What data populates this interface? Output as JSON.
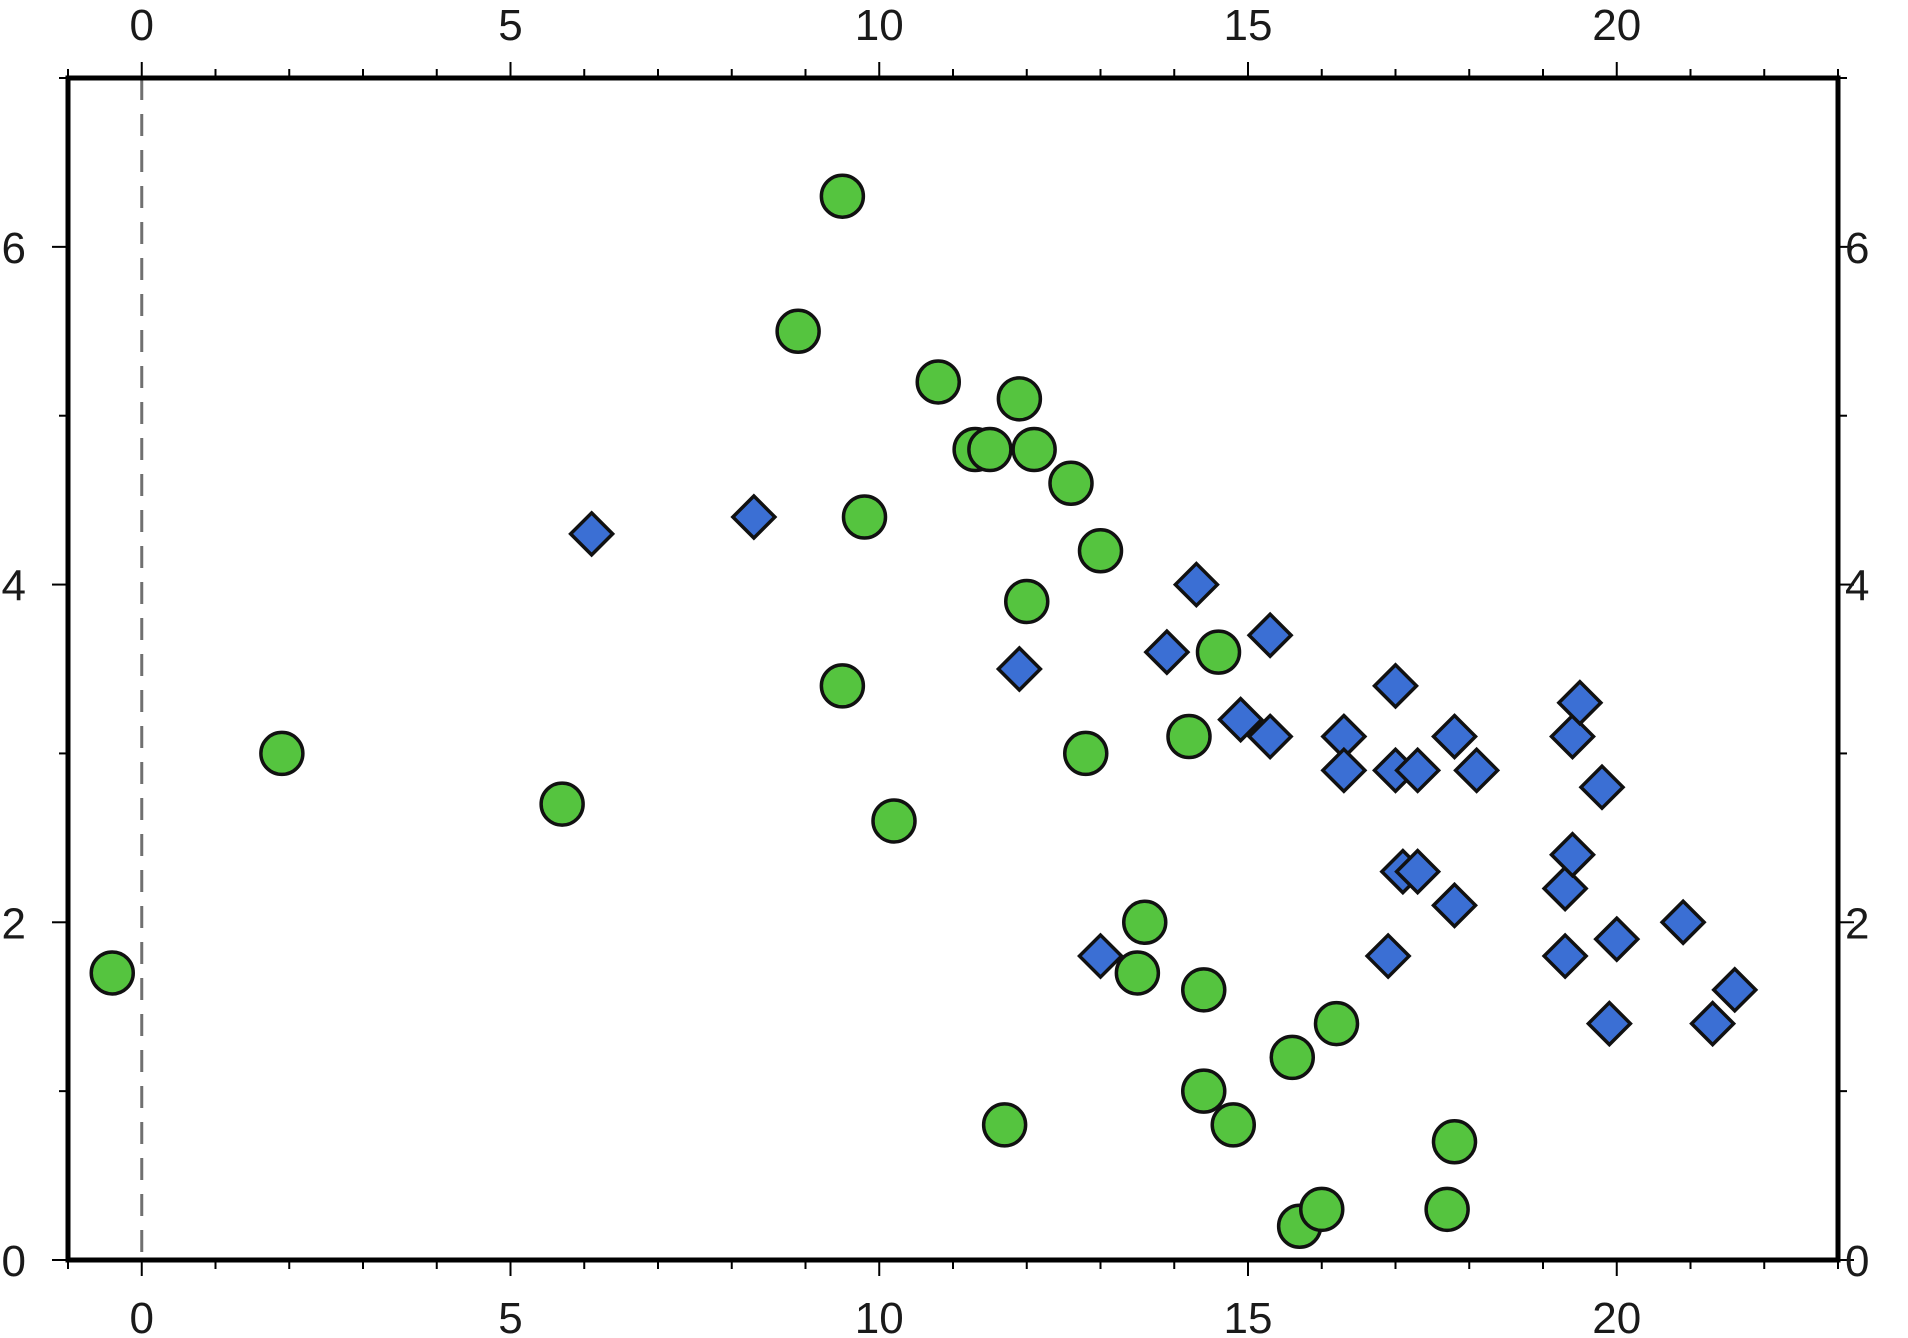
{
  "chart_data": {
    "type": "scatter",
    "title": "",
    "xlabel": "",
    "ylabel": "",
    "xlim": [
      -1,
      23
    ],
    "ylim": [
      0,
      7
    ],
    "x_ticks": [
      0,
      5,
      10,
      15,
      20
    ],
    "y_ticks": [
      0,
      2,
      4,
      6
    ],
    "x_tick_labels": [
      "0",
      "5",
      "10",
      "15",
      "20"
    ],
    "y_tick_labels": [
      "0",
      "2",
      "4",
      "6"
    ],
    "x_axes": [
      "top",
      "bottom"
    ],
    "y_axes": [
      "left",
      "right"
    ],
    "grid": false,
    "reference_line": {
      "axis": "x",
      "value": 0,
      "style": "dashed",
      "color": "#707070"
    },
    "series": [
      {
        "marker": "circle",
        "color": "#55c43f",
        "points": [
          [
            -0.4,
            1.7
          ],
          [
            1.9,
            3.0
          ],
          [
            5.7,
            2.7
          ],
          [
            8.9,
            5.5
          ],
          [
            9.5,
            6.3
          ],
          [
            9.5,
            3.4
          ],
          [
            9.8,
            4.4
          ],
          [
            10.2,
            2.6
          ],
          [
            10.8,
            5.2
          ],
          [
            11.3,
            4.8
          ],
          [
            11.5,
            4.8
          ],
          [
            11.7,
            0.8
          ],
          [
            11.9,
            5.1
          ],
          [
            12.0,
            3.9
          ],
          [
            12.1,
            4.8
          ],
          [
            12.6,
            4.6
          ],
          [
            12.8,
            3.0
          ],
          [
            13.0,
            4.2
          ],
          [
            13.5,
            1.7
          ],
          [
            13.6,
            2.0
          ],
          [
            14.2,
            3.1
          ],
          [
            14.4,
            1.6
          ],
          [
            14.4,
            1.0
          ],
          [
            14.6,
            3.6
          ],
          [
            14.8,
            0.8
          ],
          [
            15.6,
            1.2
          ],
          [
            15.7,
            0.2
          ],
          [
            16.0,
            0.3
          ],
          [
            16.2,
            1.4
          ],
          [
            17.7,
            0.3
          ],
          [
            17.8,
            0.7
          ]
        ]
      },
      {
        "marker": "diamond",
        "color": "#3b6fd4",
        "points": [
          [
            6.1,
            4.3
          ],
          [
            8.3,
            4.4
          ],
          [
            11.9,
            3.5
          ],
          [
            13.0,
            1.8
          ],
          [
            13.9,
            3.6
          ],
          [
            14.3,
            4.0
          ],
          [
            14.9,
            3.2
          ],
          [
            15.3,
            3.7
          ],
          [
            15.3,
            3.1
          ],
          [
            16.3,
            3.1
          ],
          [
            16.3,
            2.9
          ],
          [
            16.9,
            1.8
          ],
          [
            17.0,
            3.4
          ],
          [
            17.0,
            2.9
          ],
          [
            17.3,
            2.9
          ],
          [
            17.1,
            2.3
          ],
          [
            17.3,
            2.3
          ],
          [
            17.8,
            3.1
          ],
          [
            17.8,
            2.1
          ],
          [
            18.1,
            2.9
          ],
          [
            19.3,
            2.2
          ],
          [
            19.3,
            1.8
          ],
          [
            19.4,
            3.1
          ],
          [
            19.4,
            2.4
          ],
          [
            19.5,
            3.3
          ],
          [
            19.8,
            2.8
          ],
          [
            19.9,
            1.4
          ],
          [
            20.0,
            1.9
          ],
          [
            20.9,
            2.0
          ],
          [
            21.3,
            1.4
          ],
          [
            21.6,
            1.6
          ]
        ]
      }
    ]
  }
}
